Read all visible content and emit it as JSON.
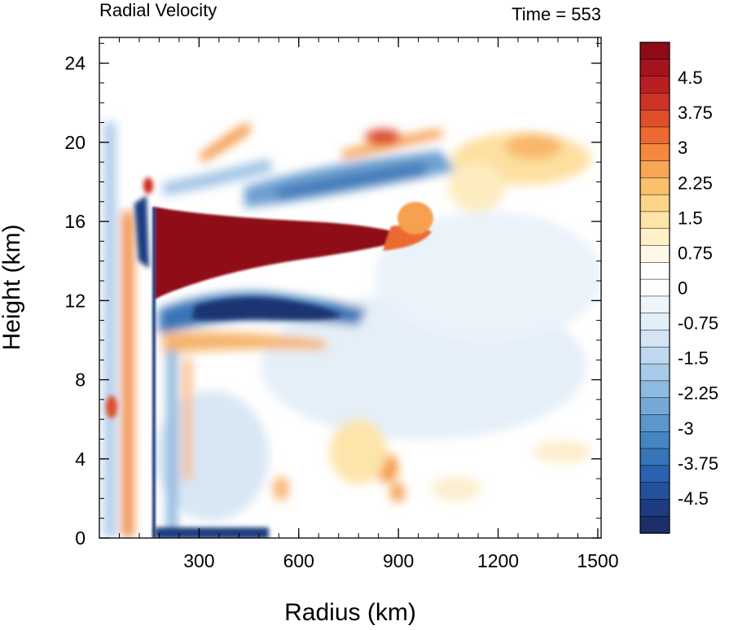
{
  "chart_data": {
    "type": "heatmap",
    "title": "Radial Velocity",
    "time_label": "Time = 553",
    "xlabel": "Radius (km)",
    "ylabel": "Height (km)",
    "xlim": [
      0,
      1510
    ],
    "ylim": [
      0,
      25.3
    ],
    "xticks": [
      300,
      600,
      900,
      1200,
      1500
    ],
    "yticks": [
      0,
      4,
      8,
      12,
      16,
      20,
      24
    ],
    "grid": false,
    "colorbar": {
      "min": -5.25,
      "max": 5.25,
      "step": 0.25,
      "labels": [
        4.5,
        3.75,
        3,
        2.25,
        1.5,
        0.75,
        0,
        -0.75,
        -1.5,
        -2.25,
        -3,
        -3.75,
        -4.5
      ]
    },
    "features": [
      {
        "desc": "outflow jet",
        "r_range_km": [
          175,
          960
        ],
        "z_range_km": [
          13.0,
          16.5
        ],
        "value_max": 5.25
      },
      {
        "desc": "inflow layer",
        "r_range_km": [
          200,
          700
        ],
        "z_range_km": [
          10.8,
          12.8
        ],
        "value_min": -5.0
      },
      {
        "desc": "upper inflow",
        "r_range_km": [
          350,
          1000
        ],
        "z_range_km": [
          16.5,
          19.5
        ],
        "value_min": -2.5
      },
      {
        "desc": "upper outflow",
        "r_range_km": [
          1050,
          1450
        ],
        "z_range_km": [
          18,
          20.5
        ],
        "value_max": 2.0
      },
      {
        "desc": "boundary inflow",
        "r_range_km": [
          150,
          450
        ],
        "z_range_km": [
          0,
          0.6
        ],
        "value_min": -5.0
      },
      {
        "desc": "eyewall updraft outflow",
        "r_range_km": [
          100,
          170
        ],
        "z_range_km": [
          0,
          16
        ],
        "value_max": 3.5
      }
    ]
  },
  "colors": {
    "palette": [
      "#1b2f6b",
      "#1e3c7f",
      "#23519b",
      "#2a62ad",
      "#3575b8",
      "#4485c2",
      "#5b97cc",
      "#74a9d6",
      "#8dbbe0",
      "#a7cbe8",
      "#bed9ef",
      "#d3e5f4",
      "#e2eef8",
      "#eef5fb",
      "#ffffff",
      "#ffffff",
      "#fff8e6",
      "#fff0c8",
      "#fee4a6",
      "#fdd588",
      "#fbc06c",
      "#f8a555",
      "#f4883f",
      "#ec6a31",
      "#e04e2b",
      "#cd3326",
      "#b81f22",
      "#a3141e",
      "#8e0b18"
    ]
  }
}
